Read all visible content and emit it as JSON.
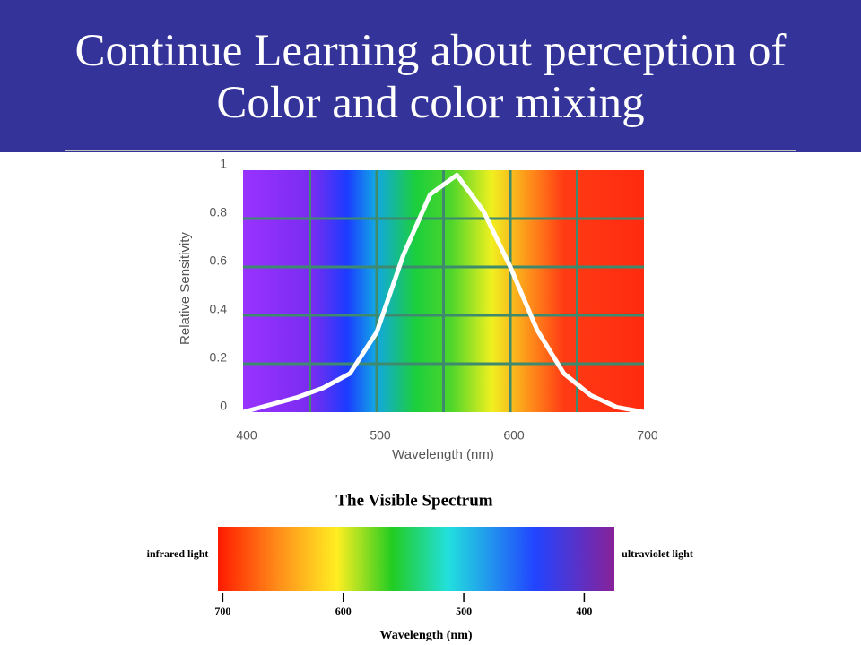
{
  "header": {
    "title": "Continue Learning about perception of Color and color mixing"
  },
  "chart_data": [
    {
      "type": "line",
      "ylabel": "Relative Sensitivity",
      "xlabel": "Wavelength (nm)",
      "x": [
        400,
        420,
        440,
        460,
        480,
        500,
        520,
        540,
        560,
        580,
        600,
        620,
        640,
        660,
        680,
        700
      ],
      "values": [
        0,
        0.03,
        0.06,
        0.1,
        0.16,
        0.33,
        0.65,
        0.9,
        0.98,
        0.83,
        0.6,
        0.34,
        0.16,
        0.07,
        0.02,
        0
      ],
      "color": "#ffffff",
      "xlim": [
        400,
        700
      ],
      "ylim": [
        0,
        1
      ],
      "xticks": [
        400,
        500,
        600,
        700
      ],
      "yticks": [
        0,
        0.2,
        0.4,
        0.6,
        0.8,
        1
      ],
      "xgrid": [
        450,
        500,
        550,
        600,
        650
      ],
      "grid": true,
      "grid_color": "#3d8a6e"
    },
    {
      "type": "spectrum",
      "title": "The Visible Spectrum",
      "xlabel": "Wavelength (nm)",
      "left_label": "infrared light",
      "right_label": "ultraviolet light",
      "xlim": [
        704,
        375
      ],
      "xticks": [
        700,
        600,
        500,
        400
      ]
    }
  ]
}
